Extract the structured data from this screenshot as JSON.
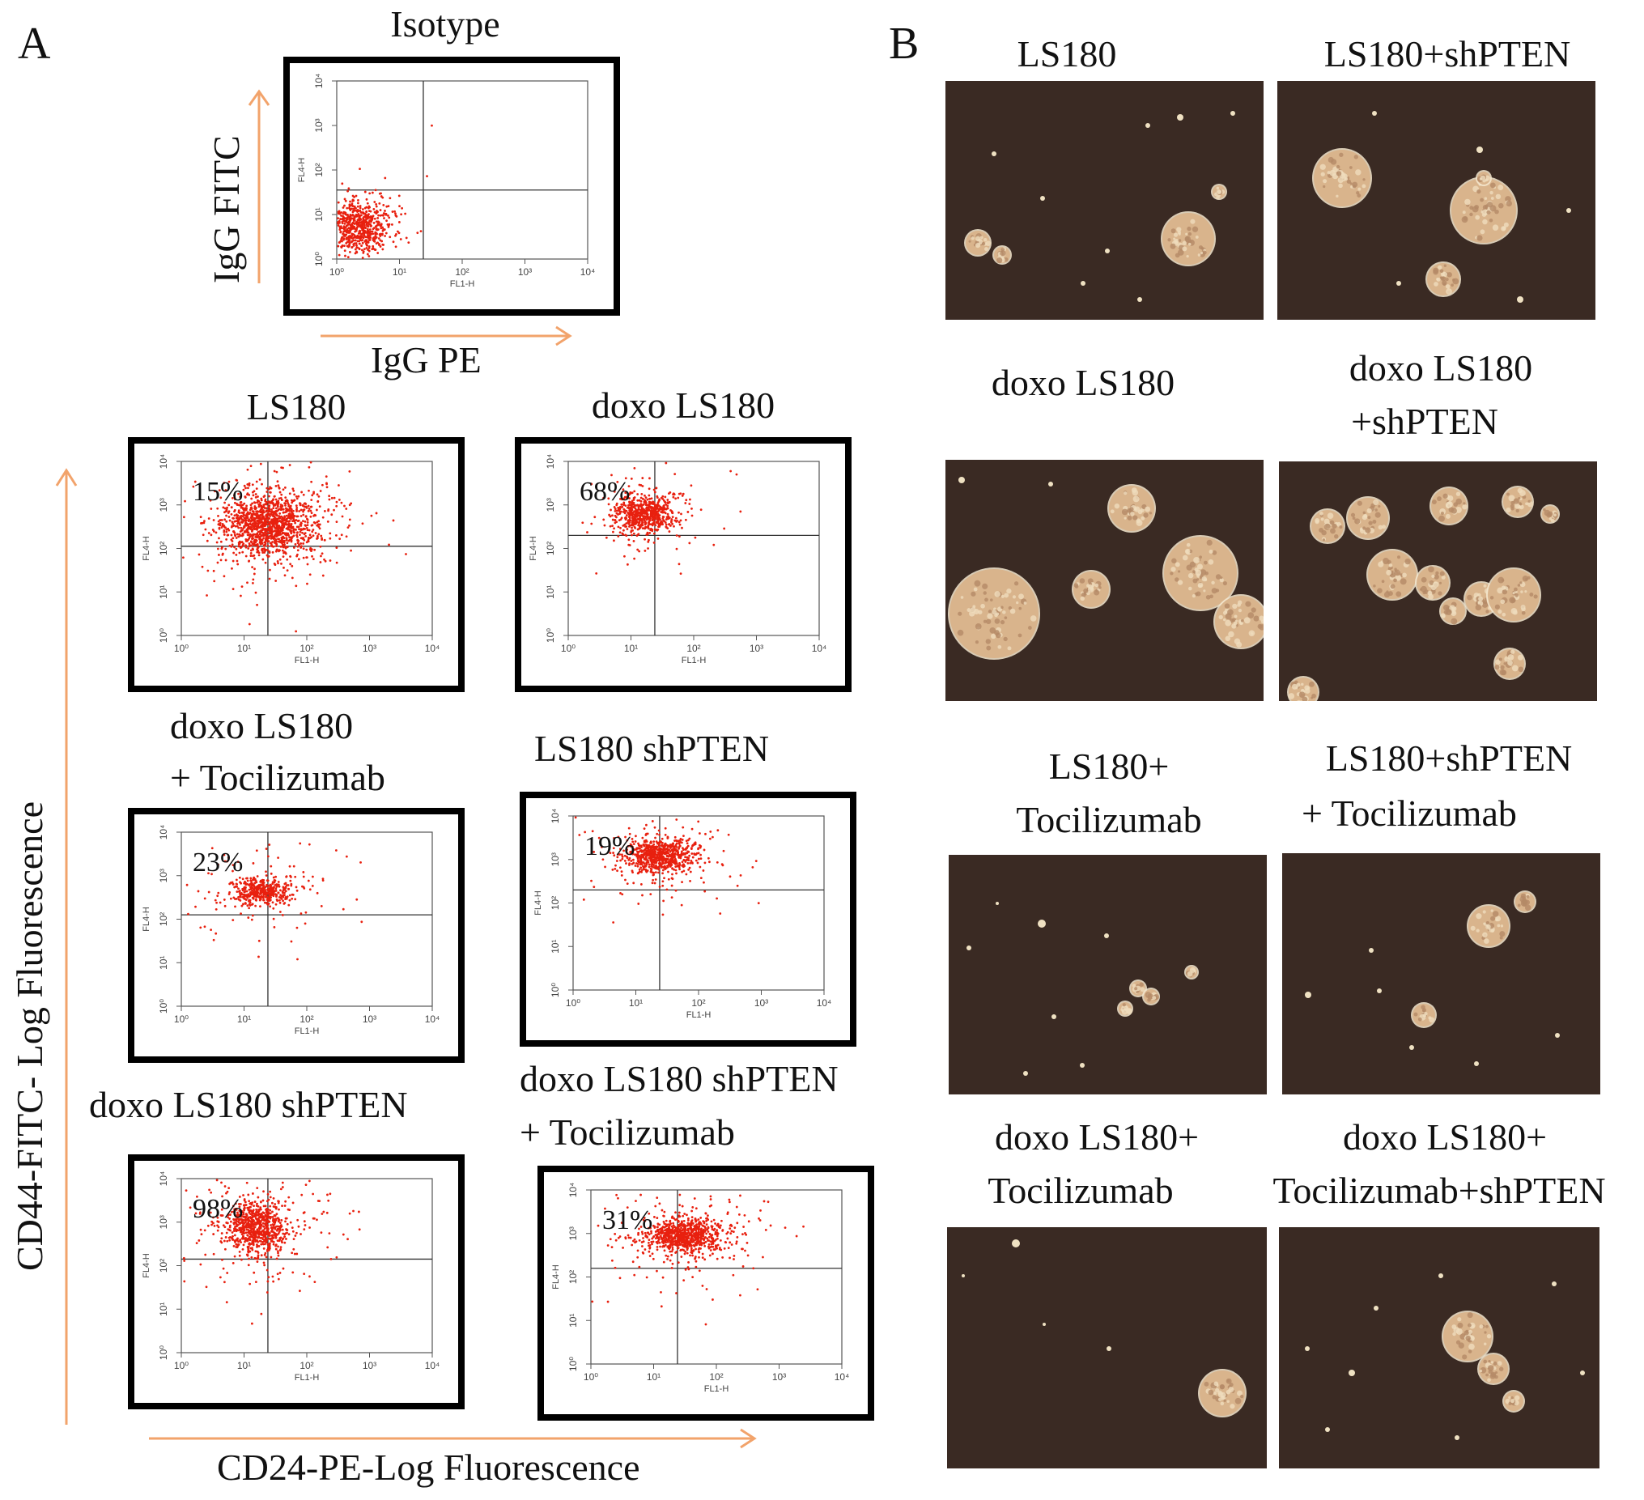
{
  "figure": {
    "panel_a_letter": "A",
    "panel_b_letter": "B",
    "axis_labels": {
      "isotype_y": "IgG FITC",
      "isotype_x": "IgG PE",
      "main_y": "CD44-FITC- Log Fluorescence",
      "main_x": "CD24-PE-Log Fluorescence"
    },
    "flow_axes": {
      "x_ticks": [
        "10⁰",
        "10¹",
        "10²",
        "10³",
        "10⁴"
      ],
      "y_ticks": [
        "10⁰",
        "10¹",
        "10²",
        "10³",
        "10⁴"
      ],
      "x_channel": "FL1-H",
      "y_channel": "FL4-H"
    },
    "flow_panels": [
      {
        "title": "Isotype",
        "percent": ""
      },
      {
        "title": "LS180",
        "percent": "15%"
      },
      {
        "title": "doxo LS180",
        "percent": "68%"
      },
      {
        "title_line1": "doxo LS180",
        "title_line2": "+ Tocilizumab",
        "percent": "23%"
      },
      {
        "title": "LS180 shPTEN",
        "percent": "19%"
      },
      {
        "title": "doxo LS180 shPTEN",
        "percent": "98%"
      },
      {
        "title_line1": "doxo LS180 shPTEN",
        "title_line2": "+ Tocilizumab",
        "percent": "31%"
      }
    ],
    "sphere_panels": [
      {
        "title": "LS180"
      },
      {
        "title": "LS180+shPTEN"
      },
      {
        "title": "doxo LS180"
      },
      {
        "title_line1": "doxo LS180",
        "title_line2": "+shPTEN"
      },
      {
        "title_line1": "LS180+",
        "title_line2": "Tocilizumab"
      },
      {
        "title_line1": "LS180+shPTEN",
        "title_line2": "+ Tocilizumab"
      },
      {
        "title_line1": "doxo LS180+",
        "title_line2": "Tocilizumab"
      },
      {
        "title_line1": "doxo LS180+",
        "title_line2": "Tocilizumab+shPTEN"
      }
    ],
    "colors": {
      "arrow": "#f2a36b",
      "dots": "#e8200f",
      "photo_bg": "#3a2a23",
      "sphere": "#d9b48c"
    }
  }
}
